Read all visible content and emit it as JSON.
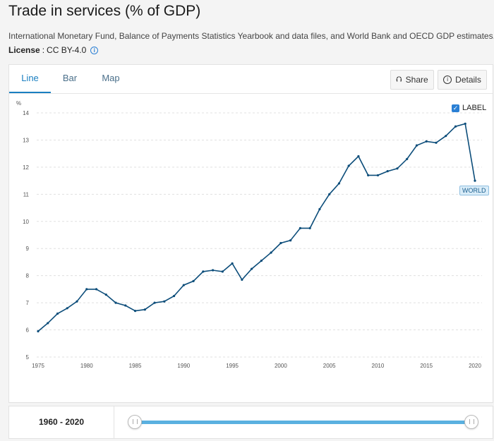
{
  "header": {
    "title": "Trade in services (% of GDP)",
    "source": "International Monetary Fund, Balance of Payments Statistics Yearbook and data files, and World Bank and OECD GDP estimates.",
    "license_key": "License",
    "license_sep": ":",
    "license_value": "CC BY-4.0"
  },
  "tabs": [
    {
      "label": "Line",
      "active": true
    },
    {
      "label": "Bar",
      "active": false
    },
    {
      "label": "Map",
      "active": false
    }
  ],
  "actions": {
    "share_label": "Share",
    "details_label": "Details"
  },
  "label_toggle": {
    "label": "LABEL",
    "checked": true
  },
  "range": {
    "label": "1960 - 2020",
    "start": 1960,
    "end": 2020
  },
  "colors": {
    "series": "#0c4d7a",
    "accent": "#1a7fc1"
  },
  "chart_data": {
    "type": "line",
    "title": "Trade in services (% of GDP)",
    "ylabel": "%",
    "xlabel": "",
    "ylim": [
      5,
      14
    ],
    "xlim": [
      1975,
      2020
    ],
    "yticks": [
      5,
      6,
      7,
      8,
      9,
      10,
      11,
      12,
      13,
      14
    ],
    "xticks": [
      1975,
      1980,
      1985,
      1990,
      1995,
      2000,
      2005,
      2010,
      2015,
      2020
    ],
    "grid": true,
    "series": [
      {
        "name": "WORLD",
        "x": [
          1975,
          1976,
          1977,
          1978,
          1979,
          1980,
          1981,
          1982,
          1983,
          1984,
          1985,
          1986,
          1987,
          1988,
          1989,
          1990,
          1991,
          1992,
          1993,
          1994,
          1995,
          1996,
          1997,
          1998,
          1999,
          2000,
          2001,
          2002,
          2003,
          2004,
          2005,
          2006,
          2007,
          2008,
          2009,
          2010,
          2011,
          2012,
          2013,
          2014,
          2015,
          2016,
          2017,
          2018,
          2019,
          2020
        ],
        "values": [
          5.95,
          6.25,
          6.6,
          6.8,
          7.05,
          7.5,
          7.5,
          7.3,
          7.0,
          6.9,
          6.7,
          6.75,
          7.0,
          7.05,
          7.25,
          7.65,
          7.8,
          8.15,
          8.2,
          8.15,
          8.45,
          7.85,
          8.25,
          8.55,
          8.85,
          9.2,
          9.3,
          9.75,
          9.75,
          10.45,
          11.0,
          11.4,
          12.05,
          12.4,
          11.7,
          11.7,
          11.85,
          11.95,
          12.3,
          12.8,
          12.95,
          12.9,
          13.15,
          13.5,
          13.6,
          11.5
        ]
      }
    ]
  }
}
